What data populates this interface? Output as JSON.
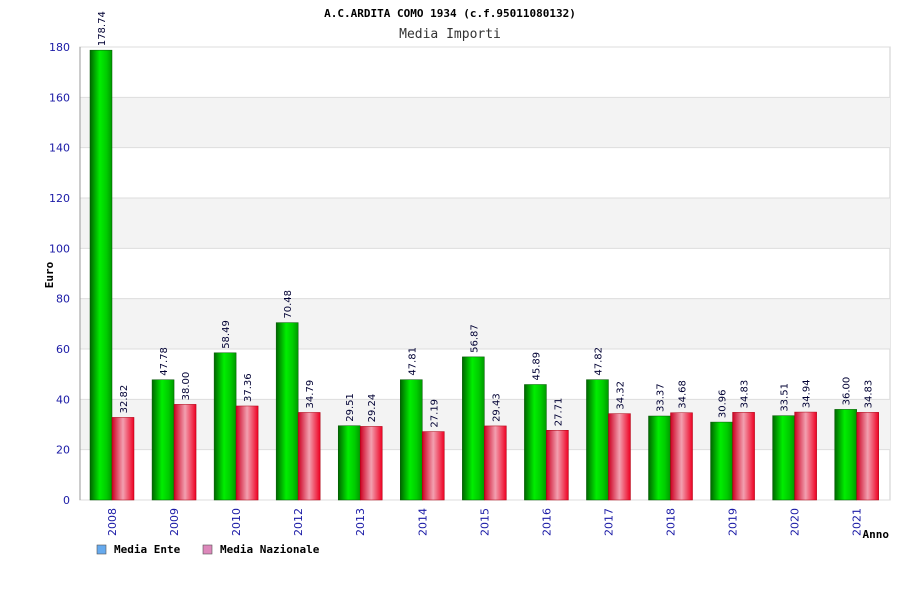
{
  "chart_data": {
    "type": "bar",
    "title": "A.C.ARDITA COMO 1934 (c.f.95011080132)",
    "subtitle": "Media Importi",
    "xlabel": "Anno",
    "ylabel": "Euro",
    "ylim": [
      0,
      180
    ],
    "yticks": [
      0,
      20,
      40,
      60,
      80,
      100,
      120,
      140,
      160,
      180
    ],
    "grid": "horizontal bands",
    "legend_position": "bottom-left",
    "categories": [
      "2008",
      "2009",
      "2010",
      "2012",
      "2013",
      "2014",
      "2015",
      "2016",
      "2017",
      "2018",
      "2019",
      "2020",
      "2021"
    ],
    "series": [
      {
        "name": "Media Ente",
        "color": "#00cc00",
        "legend_color": "#66aaee",
        "values": [
          178.74,
          47.78,
          58.49,
          70.48,
          29.51,
          47.81,
          56.87,
          45.89,
          47.82,
          33.37,
          30.96,
          33.51,
          36.0
        ],
        "labels": [
          "178.74",
          "47.78",
          "58.49",
          "70.48",
          "29.51",
          "47.81",
          "56.87",
          "45.89",
          "47.82",
          "33.37",
          "30.96",
          "33.51",
          "36.00"
        ]
      },
      {
        "name": "Media Nazionale",
        "color": "#ee1133",
        "legend_color": "#dd88bb",
        "values": [
          32.82,
          38.0,
          37.36,
          34.79,
          29.24,
          27.19,
          29.43,
          27.71,
          34.32,
          34.68,
          34.83,
          34.94,
          34.83
        ],
        "labels": [
          "32.82",
          "38.00",
          "37.36",
          "34.79",
          "29.24",
          "27.19",
          "29.43",
          "27.71",
          "34.32",
          "34.68",
          "34.83",
          "34.94",
          "34.83"
        ]
      }
    ]
  }
}
